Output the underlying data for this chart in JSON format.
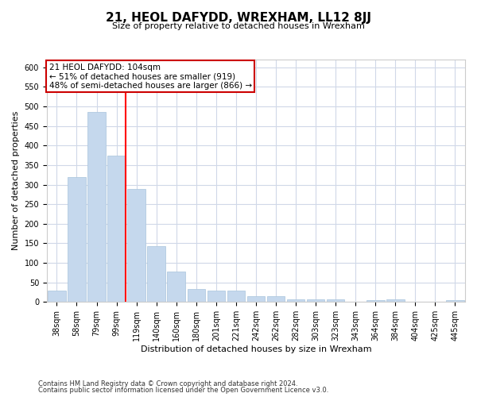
{
  "title": "21, HEOL DAFYDD, WREXHAM, LL12 8JJ",
  "subtitle": "Size of property relative to detached houses in Wrexham",
  "xlabel": "Distribution of detached houses by size in Wrexham",
  "ylabel": "Number of detached properties",
  "categories": [
    "38sqm",
    "58sqm",
    "79sqm",
    "99sqm",
    "119sqm",
    "140sqm",
    "160sqm",
    "180sqm",
    "201sqm",
    "221sqm",
    "242sqm",
    "262sqm",
    "282sqm",
    "303sqm",
    "323sqm",
    "343sqm",
    "364sqm",
    "384sqm",
    "404sqm",
    "425sqm",
    "445sqm"
  ],
  "values": [
    30,
    320,
    485,
    375,
    290,
    143,
    77,
    33,
    29,
    29,
    15,
    15,
    7,
    7,
    7,
    0,
    4,
    7,
    0,
    0,
    5
  ],
  "bar_color": "#c5d8ed",
  "bar_edgecolor": "#a8c4dc",
  "redline_index": 3,
  "annot_line1": "21 HEOL DAFYDD: 104sqm",
  "annot_line2": "← 51% of detached houses are smaller (919)",
  "annot_line3": "48% of semi-detached houses are larger (866) →",
  "annot_box_color": "#ffffff",
  "annot_box_edgecolor": "#cc0000",
  "ylim": [
    0,
    620
  ],
  "yticks": [
    0,
    50,
    100,
    150,
    200,
    250,
    300,
    350,
    400,
    450,
    500,
    550,
    600
  ],
  "footer1": "Contains HM Land Registry data © Crown copyright and database right 2024.",
  "footer2": "Contains public sector information licensed under the Open Government Licence v3.0.",
  "background_color": "#ffffff",
  "grid_color": "#d0d8e8",
  "title_fontsize": 11,
  "subtitle_fontsize": 8,
  "ylabel_fontsize": 8,
  "xlabel_fontsize": 8,
  "tick_fontsize": 7,
  "annot_fontsize": 7.5,
  "footer_fontsize": 6
}
